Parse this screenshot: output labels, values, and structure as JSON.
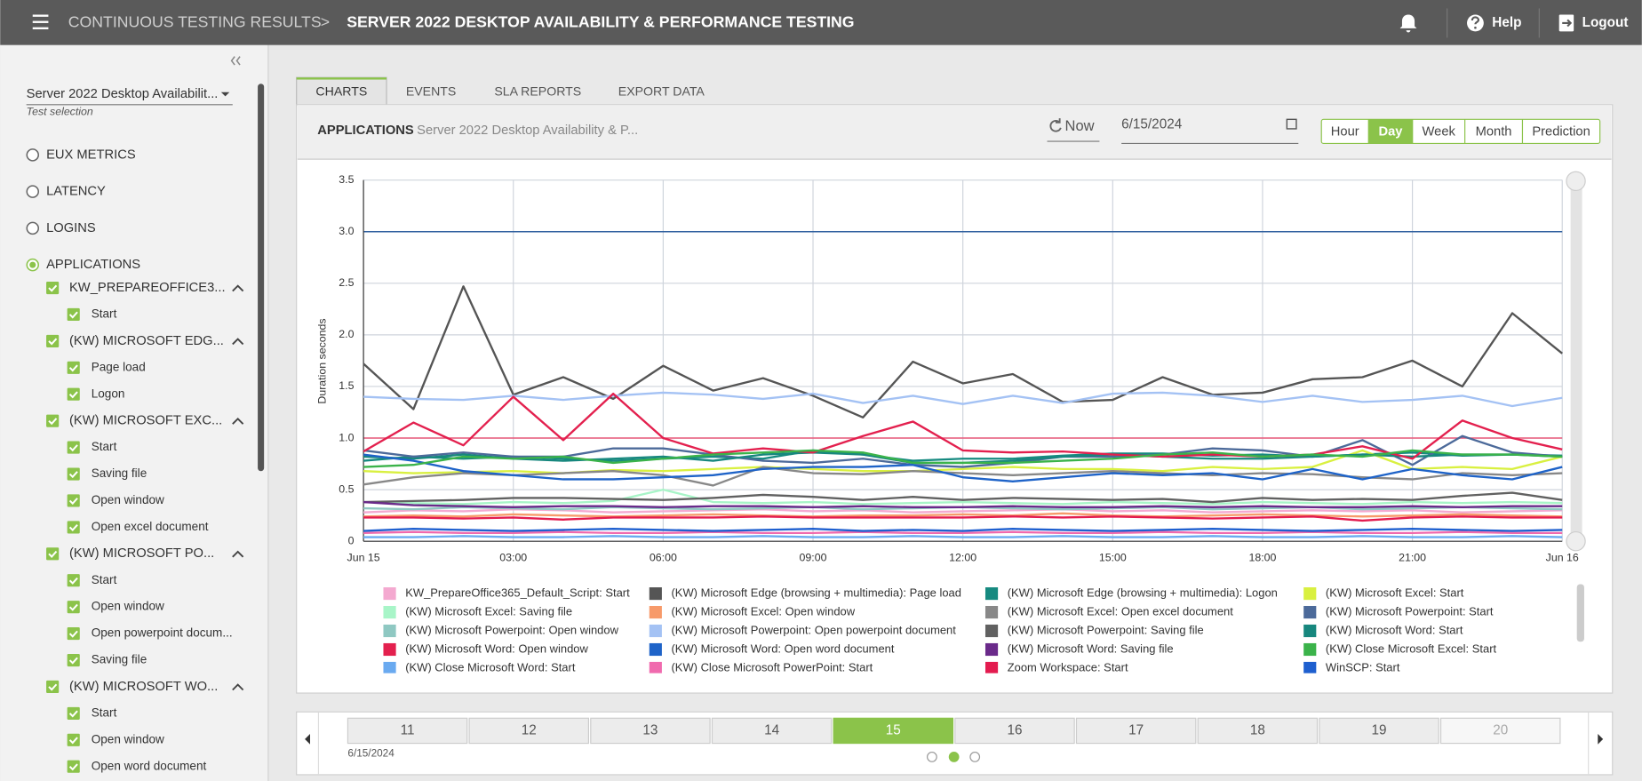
{
  "header": {
    "breadcrumb": "CONTINUOUS TESTING RESULTS",
    "separator": ">",
    "title": "SERVER 2022 DESKTOP AVAILABILITY & PERFORMANCE TESTING",
    "help": "Help",
    "logout": "Logout"
  },
  "sidebar": {
    "test_select": "Server 2022 Desktop Availabilit...",
    "test_select_label": "Test selection",
    "metrics": [
      {
        "label": "EUX METRICS"
      },
      {
        "label": "LATENCY"
      },
      {
        "label": "LOGINS"
      },
      {
        "label": "APPLICATIONS",
        "selected": true
      }
    ],
    "tree": [
      {
        "label": "KW_PREPAREOFFICE3...",
        "children": [
          "Start"
        ]
      },
      {
        "label": "(KW) MICROSOFT EDG...",
        "children": [
          "Page load",
          "Logon"
        ]
      },
      {
        "label": "(KW) MICROSOFT EXC...",
        "children": [
          "Start",
          "Saving file",
          "Open window",
          "Open excel document"
        ]
      },
      {
        "label": "(KW) MICROSOFT PO...",
        "children": [
          "Start",
          "Open window",
          "Open powerpoint docum...",
          "Saving file"
        ]
      },
      {
        "label": "(KW) MICROSOFT WO...",
        "children": [
          "Start",
          "Open window",
          "Open word document"
        ]
      }
    ]
  },
  "tabs": [
    {
      "label": "CHARTS",
      "active": true
    },
    {
      "label": "EVENTS"
    },
    {
      "label": "SLA REPORTS"
    },
    {
      "label": "EXPORT DATA"
    }
  ],
  "toolbar": {
    "section": "APPLICATIONS",
    "test": "Server 2022 Desktop Availability & P...",
    "now": "Now",
    "date": "6/15/2024",
    "ranges": [
      {
        "label": "Hour"
      },
      {
        "label": "Day",
        "active": true
      },
      {
        "label": "Week"
      },
      {
        "label": "Month"
      },
      {
        "label": "Prediction"
      }
    ]
  },
  "chart_data": {
    "type": "line",
    "y_label": "Duration seconds",
    "grid": true,
    "x": [
      0,
      1,
      2,
      3,
      4,
      5,
      6,
      7,
      8,
      9,
      10,
      11,
      12,
      13,
      14,
      15,
      16,
      17,
      18,
      19,
      20,
      21,
      22,
      23,
      24
    ],
    "xlim": [
      0,
      24
    ],
    "xticks": [
      {
        "value": 0,
        "label": "Jun 15"
      },
      {
        "value": 3,
        "label": "03:00"
      },
      {
        "value": 6,
        "label": "06:00"
      },
      {
        "value": 9,
        "label": "09:00"
      },
      {
        "value": 12,
        "label": "12:00"
      },
      {
        "value": 15,
        "label": "15:00"
      },
      {
        "value": 18,
        "label": "18:00"
      },
      {
        "value": 21,
        "label": "21:00"
      },
      {
        "value": 24,
        "label": "Jun 16"
      }
    ],
    "ylim": [
      0,
      3.5
    ],
    "yticks": [
      0,
      0.5,
      {
        "value": 1,
        "label": "1.0"
      },
      1.5,
      {
        "value": 2,
        "label": "2.0"
      },
      2.5,
      {
        "value": 3,
        "label": "3.0"
      },
      3.5
    ],
    "thresholds": [
      {
        "value": 3,
        "color": "#2f5f9f"
      },
      {
        "value": 1,
        "color": "#e8587a"
      }
    ],
    "series": [
      {
        "name": "KW_PrepareOffice365_Default_Script: Start",
        "color": "#f4a9d0",
        "values": [
          0.28,
          0.3,
          0.29,
          0.31,
          0.3,
          0.28,
          0.29,
          0.3,
          0.31,
          0.29,
          0.3,
          0.28,
          0.29,
          0.3,
          0.31,
          0.29,
          0.3,
          0.28,
          0.29,
          0.3,
          0.29,
          0.3,
          0.28,
          0.29,
          0.3
        ]
      },
      {
        "name": "(KW) Microsoft Edge (browsing + multimedia): Page load",
        "color": "#555555",
        "values": [
          1.72,
          1.28,
          2.47,
          1.42,
          1.59,
          1.38,
          1.7,
          1.46,
          1.58,
          1.41,
          1.2,
          1.74,
          1.53,
          1.62,
          1.35,
          1.37,
          1.59,
          1.42,
          1.44,
          1.57,
          1.59,
          1.75,
          1.5,
          2.21,
          1.82
        ]
      },
      {
        "name": "(KW) Microsoft Edge (browsing + multimedia): Logon",
        "color": "#168a80",
        "values": [
          0.78,
          0.82,
          0.8,
          0.82,
          0.8,
          0.78,
          0.8,
          0.82,
          0.8,
          0.88,
          0.84,
          0.78,
          0.8,
          0.8,
          0.83,
          0.85,
          0.85,
          0.83,
          0.84,
          0.82,
          0.84,
          0.86,
          0.83,
          0.84,
          0.83
        ]
      },
      {
        "name": "(KW) Microsoft Excel: Start",
        "color": "#d9f040",
        "values": [
          0.68,
          0.66,
          0.67,
          0.68,
          0.66,
          0.69,
          0.68,
          0.7,
          0.72,
          0.7,
          0.68,
          0.68,
          0.7,
          0.72,
          0.7,
          0.7,
          0.68,
          0.72,
          0.7,
          0.72,
          0.88,
          0.7,
          0.72,
          0.7,
          0.82
        ]
      },
      {
        "name": "(KW) Microsoft Excel: Saving file",
        "color": "#a8f5c8",
        "values": [
          0.38,
          0.37,
          0.36,
          0.38,
          0.37,
          0.39,
          0.5,
          0.38,
          0.37,
          0.38,
          0.36,
          0.37,
          0.38,
          0.37,
          0.36,
          0.38,
          0.37,
          0.36,
          0.38,
          0.37,
          0.36,
          0.38,
          0.37,
          0.38,
          0.37
        ]
      },
      {
        "name": "(KW) Microsoft Excel: Open window",
        "color": "#f79a6a",
        "values": [
          0.24,
          0.25,
          0.24,
          0.26,
          0.25,
          0.24,
          0.25,
          0.26,
          0.25,
          0.24,
          0.25,
          0.25,
          0.26,
          0.25,
          0.27,
          0.25,
          0.24,
          0.25,
          0.26,
          0.25,
          0.24,
          0.25,
          0.26,
          0.25,
          0.24
        ]
      },
      {
        "name": "(KW) Microsoft Excel: Open excel document",
        "color": "#888888",
        "values": [
          0.55,
          0.62,
          0.66,
          0.64,
          0.66,
          0.68,
          0.64,
          0.54,
          0.72,
          0.66,
          0.65,
          0.68,
          0.66,
          0.64,
          0.66,
          0.68,
          0.66,
          0.64,
          0.66,
          0.65,
          0.62,
          0.6,
          0.66,
          0.64,
          0.66
        ]
      },
      {
        "name": "(KW) Microsoft Powerpoint: Start",
        "color": "#4c6a9a",
        "values": [
          0.88,
          0.82,
          0.86,
          0.82,
          0.82,
          0.9,
          0.9,
          0.84,
          0.78,
          0.76,
          0.8,
          0.74,
          0.72,
          0.76,
          0.82,
          0.82,
          0.84,
          0.9,
          0.88,
          0.82,
          0.98,
          0.74,
          1.02,
          0.86,
          0.82
        ]
      },
      {
        "name": "(KW) Microsoft Powerpoint: Open window",
        "color": "#8fc8c2",
        "values": [
          0.32,
          0.31,
          0.33,
          0.32,
          0.31,
          0.33,
          0.32,
          0.31,
          0.32,
          0.33,
          0.31,
          0.32,
          0.33,
          0.32,
          0.31,
          0.32,
          0.33,
          0.31,
          0.32,
          0.33,
          0.31,
          0.32,
          0.33,
          0.32,
          0.31
        ]
      },
      {
        "name": "(KW) Microsoft Powerpoint: Open powerpoint document",
        "color": "#a4c2f4",
        "values": [
          1.4,
          1.38,
          1.37,
          1.41,
          1.37,
          1.41,
          1.44,
          1.42,
          1.38,
          1.43,
          1.34,
          1.41,
          1.33,
          1.41,
          1.34,
          1.43,
          1.44,
          1.41,
          1.35,
          1.41,
          1.35,
          1.37,
          1.41,
          1.31,
          1.39
        ]
      },
      {
        "name": "(KW) Microsoft Powerpoint: Saving file",
        "color": "#616161",
        "values": [
          0.38,
          0.39,
          0.4,
          0.42,
          0.42,
          0.41,
          0.4,
          0.42,
          0.45,
          0.43,
          0.4,
          0.43,
          0.4,
          0.42,
          0.41,
          0.4,
          0.41,
          0.38,
          0.42,
          0.4,
          0.41,
          0.4,
          0.44,
          0.47,
          0.4
        ]
      },
      {
        "name": "(KW) Microsoft Word: Start",
        "color": "#17877e",
        "values": [
          0.82,
          0.8,
          0.84,
          0.8,
          0.78,
          0.8,
          0.82,
          0.78,
          0.84,
          0.86,
          0.84,
          0.76,
          0.76,
          0.78,
          0.82,
          0.84,
          0.82,
          0.8,
          0.8,
          0.82,
          0.84,
          0.82,
          0.84,
          0.84,
          0.82
        ]
      },
      {
        "name": "(KW) Microsoft Word: Open window",
        "color": "#e3204e",
        "values": [
          0.87,
          1.15,
          0.93,
          1.4,
          0.98,
          1.43,
          1.0,
          0.85,
          0.9,
          0.86,
          1.02,
          1.16,
          0.88,
          0.86,
          0.87,
          0.84,
          0.82,
          0.84,
          0.82,
          0.84,
          0.92,
          0.8,
          1.17,
          1.0,
          0.89
        ]
      },
      {
        "name": "(KW) Microsoft Word: Open word document",
        "color": "#1e63c8",
        "values": [
          0.84,
          0.78,
          0.68,
          0.64,
          0.6,
          0.6,
          0.62,
          0.64,
          0.7,
          0.72,
          0.72,
          0.74,
          0.62,
          0.58,
          0.62,
          0.66,
          0.64,
          0.66,
          0.6,
          0.7,
          0.6,
          0.7,
          0.64,
          0.6,
          0.72
        ]
      },
      {
        "name": "(KW) Microsoft Word: Saving file",
        "color": "#6a2a8a",
        "values": [
          0.38,
          0.35,
          0.34,
          0.33,
          0.34,
          0.34,
          0.33,
          0.34,
          0.34,
          0.33,
          0.34,
          0.33,
          0.33,
          0.34,
          0.33,
          0.33,
          0.34,
          0.33,
          0.34,
          0.33,
          0.33,
          0.34,
          0.33,
          0.34,
          0.34
        ]
      },
      {
        "name": "(KW) Close Microsoft Excel: Start",
        "color": "#3bb34a",
        "values": [
          0.72,
          0.74,
          0.82,
          0.8,
          0.82,
          0.76,
          0.8,
          0.84,
          0.86,
          0.88,
          0.86,
          0.76,
          0.76,
          0.76,
          0.78,
          0.8,
          0.84,
          0.86,
          0.82,
          0.84,
          0.82,
          0.88,
          0.84,
          0.84,
          0.82
        ]
      },
      {
        "name": "(KW) Close Microsoft Word: Start",
        "color": "#6aaaf0",
        "values": [
          0.04,
          0.04,
          0.05,
          0.04,
          0.04,
          0.05,
          0.04,
          0.04,
          0.05,
          0.04,
          0.04,
          0.05,
          0.04,
          0.04,
          0.05,
          0.04,
          0.04,
          0.05,
          0.04,
          0.04,
          0.05,
          0.04,
          0.04,
          0.05,
          0.04
        ]
      },
      {
        "name": "(KW) Close Microsoft PowerPoint: Start",
        "color": "#f06aae",
        "values": [
          0.08,
          0.09,
          0.08,
          0.08,
          0.09,
          0.08,
          0.08,
          0.09,
          0.08,
          0.08,
          0.09,
          0.08,
          0.08,
          0.09,
          0.08,
          0.08,
          0.09,
          0.08,
          0.08,
          0.09,
          0.08,
          0.08,
          0.09,
          0.08,
          0.08
        ]
      },
      {
        "name": "Zoom Workspace: Start",
        "color": "#e31b4f",
        "values": [
          0.23,
          0.23,
          0.22,
          0.23,
          0.21,
          0.23,
          0.23,
          0.23,
          0.24,
          0.23,
          0.23,
          0.23,
          0.23,
          0.24,
          0.23,
          0.24,
          0.23,
          0.22,
          0.23,
          0.24,
          0.2,
          0.23,
          0.24,
          0.23,
          0.23
        ]
      },
      {
        "name": "WinSCP: Start",
        "color": "#1e5fcf",
        "values": [
          0.1,
          0.12,
          0.11,
          0.1,
          0.11,
          0.12,
          0.11,
          0.1,
          0.11,
          0.12,
          0.1,
          0.11,
          0.1,
          0.12,
          0.11,
          0.1,
          0.11,
          0.12,
          0.11,
          0.1,
          0.11,
          0.12,
          0.11,
          0.1,
          0.11
        ]
      }
    ]
  },
  "pager": {
    "date": "6/15/2024",
    "days": [
      {
        "day": 11
      },
      {
        "day": 12
      },
      {
        "day": 13
      },
      {
        "day": 14
      },
      {
        "day": 15,
        "active": true
      },
      {
        "day": 16
      },
      {
        "day": 17
      },
      {
        "day": 18
      },
      {
        "day": 19
      },
      {
        "day": 20,
        "disabled": true
      }
    ]
  }
}
